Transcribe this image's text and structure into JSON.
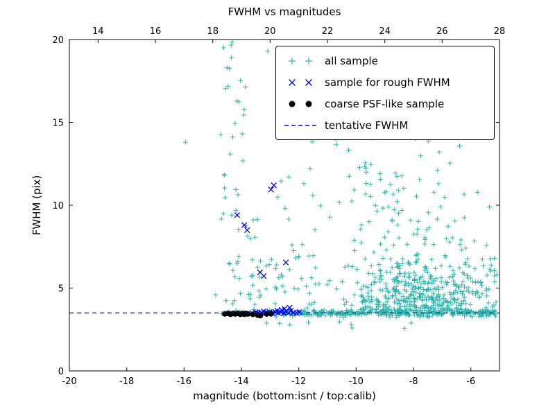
{
  "chart_data": {
    "type": "scatter",
    "title": "FWHM vs magnitudes",
    "xlabel": "magnitude (bottom:isnt / top:calib)",
    "ylabel": "FWHM (pix)",
    "grid": false,
    "legend_position": "upper right",
    "x_axis_bottom": {
      "lim": [
        -20,
        -5
      ],
      "ticks": [
        -20,
        -18,
        -16,
        -14,
        -12,
        -10,
        -8,
        -6
      ]
    },
    "x_axis_top": {
      "ticks": [
        14,
        16,
        18,
        20,
        22,
        24,
        26,
        28
      ],
      "offset_from_bottom": 33
    },
    "y_axis": {
      "lim": [
        0,
        20
      ],
      "ticks": [
        0,
        5,
        10,
        15,
        20
      ]
    },
    "tentative_fwhm": 3.5,
    "series": [
      {
        "name": "all sample",
        "marker": "plus",
        "color": "#2cb5ad",
        "points": [
          [
            -15.95,
            13.8
          ],
          [
            -13.08,
            19.3
          ],
          [
            -12.02,
            14.05
          ],
          [
            -11.6,
            12.2
          ],
          [
            -12.35,
            11.7
          ],
          [
            -14.9,
            4.6
          ],
          [
            -5.35,
            9.9
          ],
          [
            -14.62,
            19.5
          ],
          [
            -14.5,
            18.3
          ]
        ],
        "clusters": [
          {
            "count": 320,
            "x": {
              "dist": "uniform",
              "min": -12.6,
              "max": -5.05
            },
            "y": {
              "dist": "normal",
              "mean": 3.52,
              "sd": 0.11,
              "min": 3.2,
              "max": 3.95
            }
          },
          {
            "count": 45,
            "x": {
              "dist": "uniform",
              "min": -14.72,
              "max": -12.6
            },
            "y": {
              "dist": "normal",
              "mean": 3.52,
              "sd": 0.09,
              "min": 3.3,
              "max": 3.85
            }
          },
          {
            "count": 430,
            "x": {
              "dist": "normal",
              "mean": -7.6,
              "sd": 1.5,
              "min": -11.3,
              "max": -5.05
            },
            "y": {
              "dist": "halfnormal_up",
              "base": 3.6,
              "sd": 1.7,
              "max": 12.0
            }
          },
          {
            "count": 85,
            "x": {
              "dist": "normal",
              "mean": -8.4,
              "sd": 1.5,
              "min": -11.6,
              "max": -5.1
            },
            "y": {
              "dist": "uniform",
              "min": 7.5,
              "max": 14.6
            }
          },
          {
            "count": 60,
            "x": {
              "dist": "uniform",
              "min": -13.95,
              "max": -11.3
            },
            "y": {
              "dist": "halfnormal_up",
              "base": 4.0,
              "sd": 3.1,
              "max": 13.2
            }
          },
          {
            "count": 42,
            "x": {
              "dist": "normal",
              "mean": -14.3,
              "sd": 0.26,
              "min": -14.78,
              "max": -13.55
            },
            "y": {
              "dist": "uniform",
              "min": 4.0,
              "max": 20.0
            }
          },
          {
            "count": 10,
            "x": {
              "dist": "uniform",
              "min": -13.6,
              "max": -8.0
            },
            "y": {
              "dist": "uniform",
              "min": 2.5,
              "max": 3.3
            }
          }
        ]
      },
      {
        "name": "sample for rough FWHM",
        "marker": "x",
        "color": "#0000ff",
        "points": [
          [
            -13.62,
            3.5
          ],
          [
            -13.5,
            3.55
          ],
          [
            -13.42,
            3.48
          ],
          [
            -13.3,
            3.52
          ],
          [
            -13.22,
            3.6
          ],
          [
            -13.12,
            3.5
          ],
          [
            -13.02,
            3.55
          ],
          [
            -12.92,
            3.48
          ],
          [
            -12.82,
            3.56
          ],
          [
            -12.72,
            3.5
          ],
          [
            -12.62,
            3.54
          ],
          [
            -12.52,
            3.48
          ],
          [
            -12.45,
            3.58
          ],
          [
            -12.35,
            3.5
          ],
          [
            -12.28,
            3.62
          ],
          [
            -12.18,
            3.52
          ],
          [
            -12.32,
            3.82
          ],
          [
            -12.5,
            3.75
          ],
          [
            -12.6,
            3.68
          ],
          [
            -13.05,
            3.42
          ],
          [
            -13.35,
            3.44
          ],
          [
            -12.75,
            3.64
          ],
          [
            -12.08,
            3.5
          ],
          [
            -11.98,
            3.55
          ],
          [
            -12.87,
            11.2
          ],
          [
            -12.97,
            10.95
          ],
          [
            -13.9,
            8.8
          ],
          [
            -13.8,
            8.5
          ],
          [
            -14.15,
            9.4
          ],
          [
            -12.45,
            6.55
          ],
          [
            -13.35,
            5.95
          ],
          [
            -13.22,
            5.73
          ]
        ]
      },
      {
        "name": "coarse PSF-like sample",
        "marker": "dot",
        "color": "#000000",
        "points": [
          [
            -14.58,
            3.44
          ],
          [
            -14.46,
            3.47
          ],
          [
            -14.38,
            3.42
          ],
          [
            -14.3,
            3.46
          ],
          [
            -14.22,
            3.44
          ],
          [
            -14.12,
            3.47
          ],
          [
            -14.04,
            3.42
          ],
          [
            -13.97,
            3.46
          ],
          [
            -13.9,
            3.42
          ],
          [
            -13.84,
            3.47
          ],
          [
            -13.77,
            3.44
          ],
          [
            -13.6,
            3.42
          ],
          [
            -13.43,
            3.36
          ],
          [
            -13.34,
            3.34
          ],
          [
            -13.12,
            3.44
          ],
          [
            -12.97,
            3.46
          ]
        ]
      },
      {
        "name": "tentative FWHM",
        "type": "hline",
        "y": 3.5,
        "linestyle": "dashed",
        "color": "#0000ff"
      }
    ],
    "legend": [
      {
        "label": "all sample",
        "marker": "plus",
        "color": "#2cb5ad"
      },
      {
        "label": "sample for rough FWHM",
        "marker": "x",
        "color": "#0000ff"
      },
      {
        "label": "coarse PSF-like sample",
        "marker": "dot",
        "color": "#000000"
      },
      {
        "label": "tentative FWHM",
        "marker": "dashed-line",
        "color": "#0000ff"
      }
    ]
  }
}
